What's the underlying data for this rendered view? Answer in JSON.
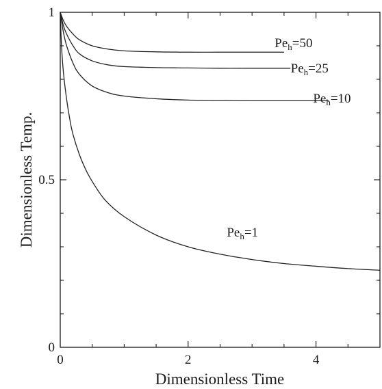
{
  "chart_data": {
    "type": "line",
    "title": "",
    "xlabel": "Dimensionless Time",
    "ylabel": "Dimensionless Temp.",
    "xlim": [
      0,
      5
    ],
    "ylim": [
      0,
      1
    ],
    "x_ticks": [
      {
        "value": 0,
        "label": "0"
      },
      {
        "value": 2,
        "label": "2"
      },
      {
        "value": 4,
        "label": "4"
      }
    ],
    "y_ticks": [
      {
        "value": 0,
        "label": "0"
      },
      {
        "value": 0.5,
        "label": "0.5"
      },
      {
        "value": 1,
        "label": "1"
      }
    ],
    "grid": false,
    "series": [
      {
        "label_base": "Pe",
        "label_sub": "h",
        "label_rest": "=50",
        "label_anchor": {
          "x": 3.65,
          "y": 0.91
        },
        "x": [
          0,
          0.05,
          0.1,
          0.2,
          0.3,
          0.5,
          0.75,
          1.0,
          1.5,
          2.0,
          2.5,
          3.0,
          3.5
        ],
        "y": [
          1.0,
          0.975,
          0.958,
          0.935,
          0.918,
          0.9,
          0.89,
          0.885,
          0.882,
          0.881,
          0.881,
          0.881,
          0.881
        ]
      },
      {
        "label_base": "Pe",
        "label_sub": "h",
        "label_rest": "=25",
        "label_anchor": {
          "x": 3.9,
          "y": 0.835
        },
        "x": [
          0,
          0.05,
          0.1,
          0.2,
          0.3,
          0.5,
          0.75,
          1.0,
          1.5,
          2.0,
          2.5,
          3.0,
          3.6
        ],
        "y": [
          1.0,
          0.96,
          0.935,
          0.9,
          0.876,
          0.855,
          0.843,
          0.838,
          0.835,
          0.834,
          0.833,
          0.833,
          0.833
        ]
      },
      {
        "label_base": "Pe",
        "label_sub": "h",
        "label_rest": "=10",
        "label_anchor": {
          "x": 4.25,
          "y": 0.745
        },
        "x": [
          0,
          0.05,
          0.1,
          0.2,
          0.3,
          0.5,
          0.75,
          1.0,
          1.5,
          2.0,
          2.5,
          3.0,
          3.5,
          4.0,
          4.2
        ],
        "y": [
          1.0,
          0.94,
          0.9,
          0.848,
          0.815,
          0.78,
          0.76,
          0.75,
          0.742,
          0.738,
          0.737,
          0.736,
          0.736,
          0.736,
          0.736
        ]
      },
      {
        "label_base": "Pe",
        "label_sub": "h",
        "label_rest": "=1",
        "label_anchor": {
          "x": 2.85,
          "y": 0.345
        },
        "x": [
          0,
          0.02,
          0.05,
          0.1,
          0.15,
          0.2,
          0.3,
          0.4,
          0.5,
          0.7,
          1.0,
          1.5,
          2.0,
          2.5,
          3.0,
          3.5,
          4.0,
          4.5,
          5.0
        ],
        "y": [
          1.0,
          0.9,
          0.82,
          0.74,
          0.68,
          0.635,
          0.575,
          0.53,
          0.495,
          0.44,
          0.39,
          0.335,
          0.3,
          0.278,
          0.262,
          0.25,
          0.242,
          0.235,
          0.23
        ]
      }
    ]
  }
}
